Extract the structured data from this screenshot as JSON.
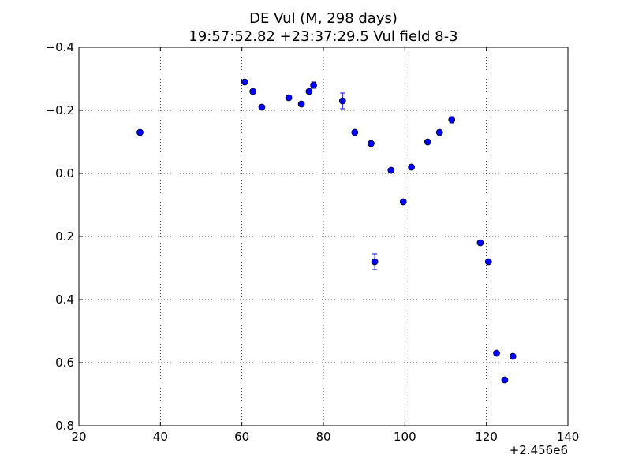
{
  "chart_data": {
    "type": "scatter",
    "title": "DE Vul (M, 298 days)",
    "subtitle": "19:57:52.82 +23:37:29.5 Vul field 8-3",
    "xlabel": "",
    "ylabel": "",
    "xlim": [
      20,
      140
    ],
    "ylim": [
      0.8,
      -0.4
    ],
    "y_inverted": true,
    "x_offset_label": "+2.456e6",
    "xticks": [
      20,
      40,
      60,
      80,
      100,
      120,
      140
    ],
    "xtick_labels": [
      "20",
      "40",
      "60",
      "80",
      "100",
      "120",
      "140"
    ],
    "yticks": [
      -0.4,
      -0.2,
      0.0,
      0.2,
      0.4,
      0.6,
      0.8
    ],
    "ytick_labels": [
      "−0.4",
      "−0.2",
      "0.0",
      "0.2",
      "0.4",
      "0.6",
      "0.8"
    ],
    "grid": true,
    "grid_style": "dotted",
    "marker_color": "#0000ff",
    "series": [
      {
        "points": [
          {
            "x": 35.0,
            "y": -0.13
          },
          {
            "x": 60.7,
            "y": -0.29
          },
          {
            "x": 62.7,
            "y": -0.26
          },
          {
            "x": 64.9,
            "y": -0.21
          },
          {
            "x": 71.5,
            "y": -0.24
          },
          {
            "x": 74.6,
            "y": -0.22
          },
          {
            "x": 76.5,
            "y": -0.26
          },
          {
            "x": 77.6,
            "y": -0.28,
            "err": 0.01
          },
          {
            "x": 84.7,
            "y": -0.23,
            "err": 0.025
          },
          {
            "x": 87.7,
            "y": -0.13
          },
          {
            "x": 91.7,
            "y": -0.095
          },
          {
            "x": 92.6,
            "y": 0.28,
            "err": 0.025
          },
          {
            "x": 96.6,
            "y": -0.01
          },
          {
            "x": 99.6,
            "y": 0.09
          },
          {
            "x": 101.6,
            "y": -0.02
          },
          {
            "x": 105.6,
            "y": -0.1
          },
          {
            "x": 108.5,
            "y": -0.13
          },
          {
            "x": 111.5,
            "y": -0.17,
            "err": 0.01
          },
          {
            "x": 118.5,
            "y": 0.22
          },
          {
            "x": 120.5,
            "y": 0.28
          },
          {
            "x": 122.5,
            "y": 0.57
          },
          {
            "x": 124.5,
            "y": 0.655
          },
          {
            "x": 126.5,
            "y": 0.58
          }
        ]
      }
    ]
  }
}
